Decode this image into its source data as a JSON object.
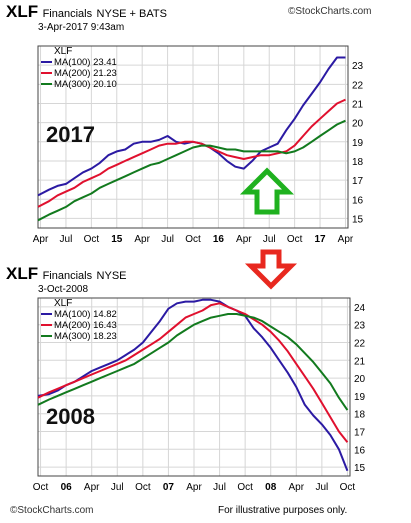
{
  "chart_data": [
    {
      "type": "line",
      "symbol": "XLF",
      "name": "Financials",
      "exchange": "NYSE + BATS",
      "date": "3-Apr-2017 9:43am",
      "credit": "©StockCharts.com",
      "annotation": "2017",
      "legend_title": "XLF",
      "legend_position": "top-left",
      "grid": true,
      "ylim": [
        14.5,
        24
      ],
      "yticks": [
        15,
        16,
        17,
        18,
        19,
        20,
        21,
        22,
        23
      ],
      "xticks": [
        {
          "label": "Apr",
          "x": 0,
          "bold": false
        },
        {
          "label": "Jul",
          "x": 3,
          "bold": false
        },
        {
          "label": "Oct",
          "x": 6,
          "bold": false
        },
        {
          "label": "15",
          "x": 9,
          "bold": true
        },
        {
          "label": "Apr",
          "x": 12,
          "bold": false
        },
        {
          "label": "Jul",
          "x": 15,
          "bold": false
        },
        {
          "label": "Oct",
          "x": 18,
          "bold": false
        },
        {
          "label": "16",
          "x": 21,
          "bold": true
        },
        {
          "label": "Apr",
          "x": 24,
          "bold": false
        },
        {
          "label": "Jul",
          "x": 27,
          "bold": false
        },
        {
          "label": "Oct",
          "x": 30,
          "bold": false
        },
        {
          "label": "17",
          "x": 33,
          "bold": true
        },
        {
          "label": "Apr",
          "x": 36,
          "bold": false
        }
      ],
      "xlim": [
        -0.3,
        36.3
      ],
      "series": [
        {
          "name": "MA(100) 23.41",
          "color": "#2b1aa3",
          "x": [
            -0.3,
            1,
            2,
            3,
            4,
            5,
            6,
            7,
            8,
            9,
            10,
            11,
            12,
            13,
            14,
            15,
            16,
            17,
            18,
            19,
            20,
            21,
            22,
            23,
            24,
            25,
            26,
            27,
            28,
            29,
            30,
            31,
            32,
            33,
            34,
            35,
            36
          ],
          "values": [
            16.2,
            16.5,
            16.7,
            16.8,
            17.1,
            17.4,
            17.6,
            17.9,
            18.3,
            18.5,
            18.6,
            18.9,
            19.0,
            19.0,
            19.1,
            19.3,
            19.0,
            18.9,
            19.0,
            18.9,
            18.7,
            18.4,
            18.0,
            17.7,
            17.6,
            18.0,
            18.5,
            18.7,
            18.9,
            19.6,
            20.2,
            20.9,
            21.5,
            22.1,
            22.8,
            23.4,
            23.4
          ]
        },
        {
          "name": "MA(200) 21.23",
          "color": "#e0102e",
          "x": [
            -0.3,
            1,
            2,
            3,
            4,
            5,
            6,
            7,
            8,
            9,
            10,
            11,
            12,
            13,
            14,
            15,
            16,
            17,
            18,
            19,
            20,
            21,
            22,
            23,
            24,
            25,
            26,
            27,
            28,
            29,
            30,
            31,
            32,
            33,
            34,
            35,
            36
          ],
          "values": [
            15.6,
            15.9,
            16.2,
            16.4,
            16.6,
            16.9,
            17.1,
            17.3,
            17.6,
            17.8,
            18.0,
            18.2,
            18.4,
            18.6,
            18.8,
            18.9,
            18.9,
            19.0,
            19.0,
            18.9,
            18.7,
            18.5,
            18.3,
            18.2,
            18.1,
            18.2,
            18.3,
            18.3,
            18.4,
            18.5,
            18.8,
            19.3,
            19.8,
            20.2,
            20.6,
            21.0,
            21.2
          ]
        },
        {
          "name": "MA(300) 20.10",
          "color": "#127a1e",
          "x": [
            -0.3,
            1,
            2,
            3,
            4,
            5,
            6,
            7,
            8,
            9,
            10,
            11,
            12,
            13,
            14,
            15,
            16,
            17,
            18,
            19,
            20,
            21,
            22,
            23,
            24,
            25,
            26,
            27,
            28,
            29,
            30,
            31,
            32,
            33,
            34,
            35,
            36
          ],
          "values": [
            14.9,
            15.2,
            15.4,
            15.6,
            15.9,
            16.1,
            16.3,
            16.6,
            16.8,
            17.0,
            17.2,
            17.4,
            17.6,
            17.8,
            17.9,
            18.1,
            18.3,
            18.5,
            18.7,
            18.8,
            18.8,
            18.7,
            18.6,
            18.6,
            18.5,
            18.5,
            18.5,
            18.5,
            18.5,
            18.4,
            18.5,
            18.7,
            19.0,
            19.3,
            19.6,
            19.9,
            20.1
          ]
        }
      ]
    },
    {
      "type": "line",
      "symbol": "XLF",
      "name": "Financials",
      "exchange": "NYSE",
      "date": "3-Oct-2008",
      "credit": "©StockCharts.com",
      "annotation": "2008",
      "legend_title": "XLF",
      "legend_position": "top-left",
      "grid": true,
      "ylim": [
        14.5,
        24.5
      ],
      "yticks": [
        15,
        16,
        17,
        18,
        19,
        20,
        21,
        22,
        23,
        24
      ],
      "xticks": [
        {
          "label": "Oct",
          "x": 0,
          "bold": false
        },
        {
          "label": "06",
          "x": 3,
          "bold": true
        },
        {
          "label": "Apr",
          "x": 6,
          "bold": false
        },
        {
          "label": "Jul",
          "x": 9,
          "bold": false
        },
        {
          "label": "Oct",
          "x": 12,
          "bold": false
        },
        {
          "label": "07",
          "x": 15,
          "bold": true
        },
        {
          "label": "Apr",
          "x": 18,
          "bold": false
        },
        {
          "label": "Jul",
          "x": 21,
          "bold": false
        },
        {
          "label": "Oct",
          "x": 24,
          "bold": false
        },
        {
          "label": "08",
          "x": 27,
          "bold": true
        },
        {
          "label": "Apr",
          "x": 30,
          "bold": false
        },
        {
          "label": "Jul",
          "x": 33,
          "bold": false
        },
        {
          "label": "Oct",
          "x": 36,
          "bold": false
        }
      ],
      "xlim": [
        -0.3,
        36.3
      ],
      "series": [
        {
          "name": "MA(100) 14.82",
          "color": "#2b1aa3",
          "x": [
            -0.3,
            1,
            2,
            3,
            4,
            5,
            6,
            7,
            8,
            9,
            10,
            11,
            12,
            13,
            14,
            15,
            16,
            17,
            18,
            19,
            20,
            21,
            22,
            23,
            24,
            25,
            26,
            27,
            28,
            29,
            30,
            31,
            32,
            33,
            34,
            35,
            36
          ],
          "values": [
            19.0,
            19.1,
            19.3,
            19.6,
            19.8,
            20.1,
            20.4,
            20.6,
            20.8,
            21.0,
            21.3,
            21.6,
            22.0,
            22.6,
            23.2,
            23.9,
            24.2,
            24.3,
            24.3,
            24.4,
            24.4,
            24.3,
            24.0,
            23.8,
            23.5,
            22.8,
            22.3,
            21.7,
            21.0,
            20.3,
            19.5,
            18.5,
            17.9,
            17.4,
            16.8,
            16.0,
            14.8
          ]
        },
        {
          "name": "MA(200) 16.43",
          "color": "#e0102e",
          "x": [
            -0.3,
            1,
            2,
            3,
            4,
            5,
            6,
            7,
            8,
            9,
            10,
            11,
            12,
            13,
            14,
            15,
            16,
            17,
            18,
            19,
            20,
            21,
            22,
            23,
            24,
            25,
            26,
            27,
            28,
            29,
            30,
            31,
            32,
            33,
            34,
            35,
            36
          ],
          "values": [
            18.9,
            19.2,
            19.4,
            19.6,
            19.8,
            20.0,
            20.2,
            20.4,
            20.6,
            20.8,
            21.0,
            21.3,
            21.6,
            21.9,
            22.2,
            22.6,
            23.0,
            23.4,
            23.6,
            23.8,
            24.1,
            24.2,
            24.0,
            23.8,
            23.6,
            23.3,
            23.0,
            22.6,
            22.1,
            21.5,
            20.8,
            20.1,
            19.4,
            18.6,
            17.8,
            17.0,
            16.4
          ]
        },
        {
          "name": "MA(300) 18.23",
          "color": "#127a1e",
          "x": [
            -0.3,
            1,
            2,
            3,
            4,
            5,
            6,
            7,
            8,
            9,
            10,
            11,
            12,
            13,
            14,
            15,
            16,
            17,
            18,
            19,
            20,
            21,
            22,
            23,
            24,
            25,
            26,
            27,
            28,
            29,
            30,
            31,
            32,
            33,
            34,
            35,
            36
          ],
          "values": [
            18.5,
            18.8,
            19.0,
            19.2,
            19.4,
            19.6,
            19.8,
            20.0,
            20.2,
            20.4,
            20.6,
            20.8,
            21.1,
            21.4,
            21.7,
            22.0,
            22.4,
            22.7,
            23.0,
            23.2,
            23.4,
            23.5,
            23.6,
            23.6,
            23.5,
            23.4,
            23.2,
            22.9,
            22.6,
            22.3,
            21.9,
            21.4,
            20.9,
            20.3,
            19.7,
            18.9,
            18.2
          ]
        }
      ]
    }
  ],
  "arrows": {
    "up_color": "#1fb11f",
    "down_color": "#e8281f"
  },
  "footer": {
    "credit": "©StockCharts.com",
    "note": "For illustrative purposes only."
  }
}
